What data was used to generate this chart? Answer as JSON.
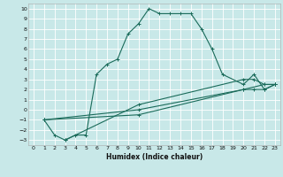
{
  "title": "",
  "xlabel": "Humidex (Indice chaleur)",
  "bg_color": "#c8e8e8",
  "grid_color": "#ffffff",
  "line_color": "#1a6b5a",
  "xlim": [
    -0.5,
    23.5
  ],
  "ylim": [
    -3.5,
    10.5
  ],
  "xticks": [
    0,
    1,
    2,
    3,
    4,
    5,
    6,
    7,
    8,
    9,
    10,
    11,
    12,
    13,
    14,
    15,
    16,
    17,
    18,
    19,
    20,
    21,
    22,
    23
  ],
  "yticks": [
    -3,
    -2,
    -1,
    0,
    1,
    2,
    3,
    4,
    5,
    6,
    7,
    8,
    9,
    10
  ],
  "lines": [
    {
      "x": [
        1,
        2,
        3,
        4,
        5,
        6,
        7,
        8,
        9,
        10,
        11,
        12,
        13,
        14,
        15,
        16,
        17,
        18,
        20,
        21,
        22,
        23
      ],
      "y": [
        -1,
        -2.5,
        -3,
        -2.5,
        -2.5,
        3.5,
        4.5,
        5,
        7.5,
        8.5,
        10,
        9.5,
        9.5,
        9.5,
        9.5,
        8,
        6,
        3.5,
        2.5,
        3.5,
        2,
        2.5
      ]
    },
    {
      "x": [
        1,
        10,
        20,
        21,
        22,
        23
      ],
      "y": [
        -1,
        0,
        2,
        2,
        2,
        2.5
      ]
    },
    {
      "x": [
        1,
        10,
        20,
        22,
        23
      ],
      "y": [
        -1,
        -0.5,
        2.0,
        2.5,
        2.5
      ]
    },
    {
      "x": [
        3,
        10,
        20,
        21,
        22,
        23
      ],
      "y": [
        -3,
        0.5,
        3,
        3,
        2.5,
        2.5
      ]
    }
  ]
}
